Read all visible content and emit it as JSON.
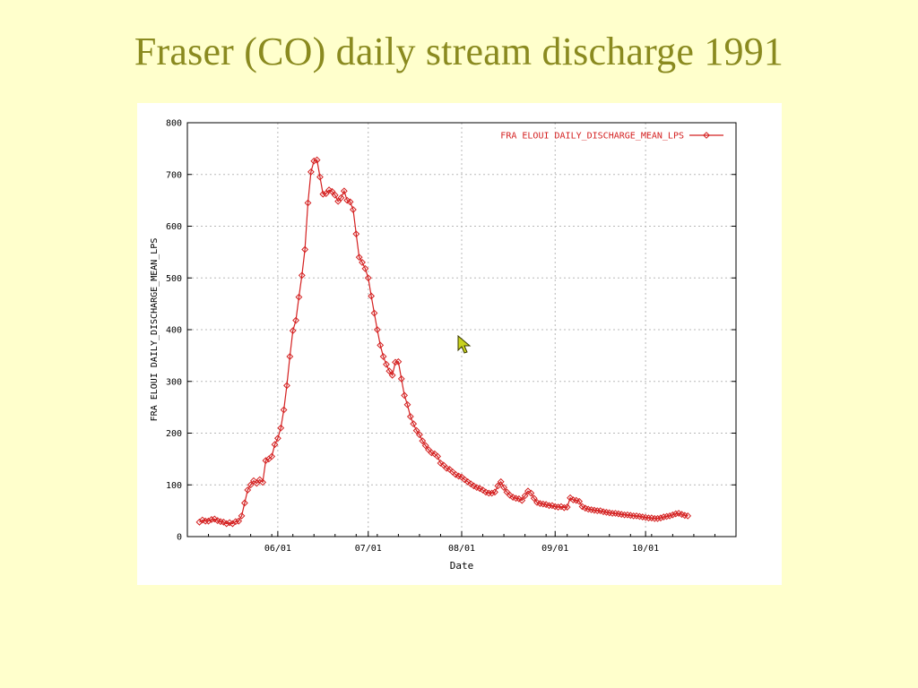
{
  "slide": {
    "title": "Fraser (CO) daily stream discharge 1991"
  },
  "colors": {
    "background": "#ffffcc",
    "title": "#8a8a1f",
    "series": "#d42020",
    "grid": "#b8b8b8"
  },
  "chart_data": {
    "type": "line",
    "xlabel": "Date",
    "ylabel": "FRA ELOUI DAILY_DISCHARGE_MEAN_LPS",
    "xlim": [
      "1991-05-02",
      "1991-10-31"
    ],
    "ylim": [
      0,
      800
    ],
    "yticks": [
      0,
      100,
      200,
      300,
      400,
      500,
      600,
      700,
      800
    ],
    "xticks": [
      {
        "label": "06/01",
        "date": "1991-06-01"
      },
      {
        "label": "07/01",
        "date": "1991-07-01"
      },
      {
        "label": "08/01",
        "date": "1991-08-01"
      },
      {
        "label": "09/01",
        "date": "1991-09-01"
      },
      {
        "label": "10/01",
        "date": "1991-10-01"
      }
    ],
    "grid": true,
    "legend_position": "top-right",
    "series": [
      {
        "name": "FRA ELOUI DAILY_DISCHARGE_MEAN_LPS",
        "marker": "diamond",
        "points": [
          [
            "1991-05-06",
            28
          ],
          [
            "1991-05-07",
            32
          ],
          [
            "1991-05-08",
            30
          ],
          [
            "1991-05-09",
            30
          ],
          [
            "1991-05-10",
            33
          ],
          [
            "1991-05-11",
            34
          ],
          [
            "1991-05-12",
            31
          ],
          [
            "1991-05-13",
            29
          ],
          [
            "1991-05-14",
            28
          ],
          [
            "1991-05-15",
            25
          ],
          [
            "1991-05-16",
            27
          ],
          [
            "1991-05-17",
            25
          ],
          [
            "1991-05-18",
            29
          ],
          [
            "1991-05-19",
            30
          ],
          [
            "1991-05-20",
            40
          ],
          [
            "1991-05-21",
            65
          ],
          [
            "1991-05-22",
            90
          ],
          [
            "1991-05-23",
            100
          ],
          [
            "1991-05-24",
            108
          ],
          [
            "1991-05-25",
            103
          ],
          [
            "1991-05-26",
            110
          ],
          [
            "1991-05-27",
            105
          ],
          [
            "1991-05-28",
            147
          ],
          [
            "1991-05-29",
            150
          ],
          [
            "1991-05-30",
            155
          ],
          [
            "1991-05-31",
            178
          ],
          [
            "1991-06-01",
            190
          ],
          [
            "1991-06-02",
            210
          ],
          [
            "1991-06-03",
            245
          ],
          [
            "1991-06-04",
            292
          ],
          [
            "1991-06-05",
            348
          ],
          [
            "1991-06-06",
            398
          ],
          [
            "1991-06-07",
            418
          ],
          [
            "1991-06-08",
            463
          ],
          [
            "1991-06-09",
            505
          ],
          [
            "1991-06-10",
            555
          ],
          [
            "1991-06-11",
            645
          ],
          [
            "1991-06-12",
            705
          ],
          [
            "1991-06-13",
            726
          ],
          [
            "1991-06-14",
            728
          ],
          [
            "1991-06-15",
            695
          ],
          [
            "1991-06-16",
            662
          ],
          [
            "1991-06-17",
            663
          ],
          [
            "1991-06-18",
            670
          ],
          [
            "1991-06-19",
            667
          ],
          [
            "1991-06-20",
            660
          ],
          [
            "1991-06-21",
            648
          ],
          [
            "1991-06-22",
            655
          ],
          [
            "1991-06-23",
            668
          ],
          [
            "1991-06-24",
            650
          ],
          [
            "1991-06-25",
            647
          ],
          [
            "1991-06-26",
            632
          ],
          [
            "1991-06-27",
            585
          ],
          [
            "1991-06-28",
            540
          ],
          [
            "1991-06-29",
            530
          ],
          [
            "1991-06-30",
            518
          ],
          [
            "1991-07-01",
            500
          ],
          [
            "1991-07-02",
            465
          ],
          [
            "1991-07-03",
            432
          ],
          [
            "1991-07-04",
            400
          ],
          [
            "1991-07-05",
            370
          ],
          [
            "1991-07-06",
            348
          ],
          [
            "1991-07-07",
            333
          ],
          [
            "1991-07-08",
            320
          ],
          [
            "1991-07-09",
            312
          ],
          [
            "1991-07-10",
            337
          ],
          [
            "1991-07-11",
            338
          ],
          [
            "1991-07-12",
            305
          ],
          [
            "1991-07-13",
            273
          ],
          [
            "1991-07-14",
            255
          ],
          [
            "1991-07-15",
            232
          ],
          [
            "1991-07-16",
            218
          ],
          [
            "1991-07-17",
            205
          ],
          [
            "1991-07-18",
            197
          ],
          [
            "1991-07-19",
            185
          ],
          [
            "1991-07-20",
            176
          ],
          [
            "1991-07-21",
            168
          ],
          [
            "1991-07-22",
            162
          ],
          [
            "1991-07-23",
            160
          ],
          [
            "1991-07-24",
            155
          ],
          [
            "1991-07-25",
            142
          ],
          [
            "1991-07-26",
            138
          ],
          [
            "1991-07-27",
            132
          ],
          [
            "1991-07-28",
            130
          ],
          [
            "1991-07-29",
            125
          ],
          [
            "1991-07-30",
            120
          ],
          [
            "1991-07-31",
            117
          ],
          [
            "1991-08-01",
            115
          ],
          [
            "1991-08-02",
            110
          ],
          [
            "1991-08-03",
            106
          ],
          [
            "1991-08-04",
            102
          ],
          [
            "1991-08-05",
            98
          ],
          [
            "1991-08-06",
            95
          ],
          [
            "1991-08-07",
            93
          ],
          [
            "1991-08-08",
            90
          ],
          [
            "1991-08-09",
            86
          ],
          [
            "1991-08-10",
            84
          ],
          [
            "1991-08-11",
            84
          ],
          [
            "1991-08-12",
            86
          ],
          [
            "1991-08-13",
            98
          ],
          [
            "1991-08-14",
            106
          ],
          [
            "1991-08-15",
            95
          ],
          [
            "1991-08-16",
            86
          ],
          [
            "1991-08-17",
            80
          ],
          [
            "1991-08-18",
            76
          ],
          [
            "1991-08-19",
            74
          ],
          [
            "1991-08-20",
            73
          ],
          [
            "1991-08-21",
            70
          ],
          [
            "1991-08-22",
            79
          ],
          [
            "1991-08-23",
            88
          ],
          [
            "1991-08-24",
            84
          ],
          [
            "1991-08-25",
            74
          ],
          [
            "1991-08-26",
            66
          ],
          [
            "1991-08-27",
            64
          ],
          [
            "1991-08-28",
            63
          ],
          [
            "1991-08-29",
            62
          ],
          [
            "1991-08-30",
            60
          ],
          [
            "1991-08-31",
            60
          ],
          [
            "1991-09-01",
            58
          ],
          [
            "1991-09-02",
            57
          ],
          [
            "1991-09-03",
            58
          ],
          [
            "1991-09-04",
            56
          ],
          [
            "1991-09-05",
            57
          ],
          [
            "1991-09-06",
            75
          ],
          [
            "1991-09-07",
            71
          ],
          [
            "1991-09-08",
            70
          ],
          [
            "1991-09-09",
            68
          ],
          [
            "1991-09-10",
            58
          ],
          [
            "1991-09-11",
            55
          ],
          [
            "1991-09-12",
            53
          ],
          [
            "1991-09-13",
            52
          ],
          [
            "1991-09-14",
            51
          ],
          [
            "1991-09-15",
            50
          ],
          [
            "1991-09-16",
            50
          ],
          [
            "1991-09-17",
            48
          ],
          [
            "1991-09-18",
            47
          ],
          [
            "1991-09-19",
            46
          ],
          [
            "1991-09-20",
            45
          ],
          [
            "1991-09-21",
            45
          ],
          [
            "1991-09-22",
            44
          ],
          [
            "1991-09-23",
            43
          ],
          [
            "1991-09-24",
            42
          ],
          [
            "1991-09-25",
            42
          ],
          [
            "1991-09-26",
            41
          ],
          [
            "1991-09-27",
            40
          ],
          [
            "1991-09-28",
            40
          ],
          [
            "1991-09-29",
            39
          ],
          [
            "1991-09-30",
            38
          ],
          [
            "1991-10-01",
            37
          ],
          [
            "1991-10-02",
            36
          ],
          [
            "1991-10-03",
            36
          ],
          [
            "1991-10-04",
            35
          ],
          [
            "1991-10-05",
            35
          ],
          [
            "1991-10-06",
            36
          ],
          [
            "1991-10-07",
            38
          ],
          [
            "1991-10-08",
            39
          ],
          [
            "1991-10-09",
            40
          ],
          [
            "1991-10-10",
            42
          ],
          [
            "1991-10-11",
            44
          ],
          [
            "1991-10-12",
            45
          ],
          [
            "1991-10-13",
            43
          ],
          [
            "1991-10-14",
            41
          ],
          [
            "1991-10-15",
            40
          ]
        ]
      }
    ]
  }
}
